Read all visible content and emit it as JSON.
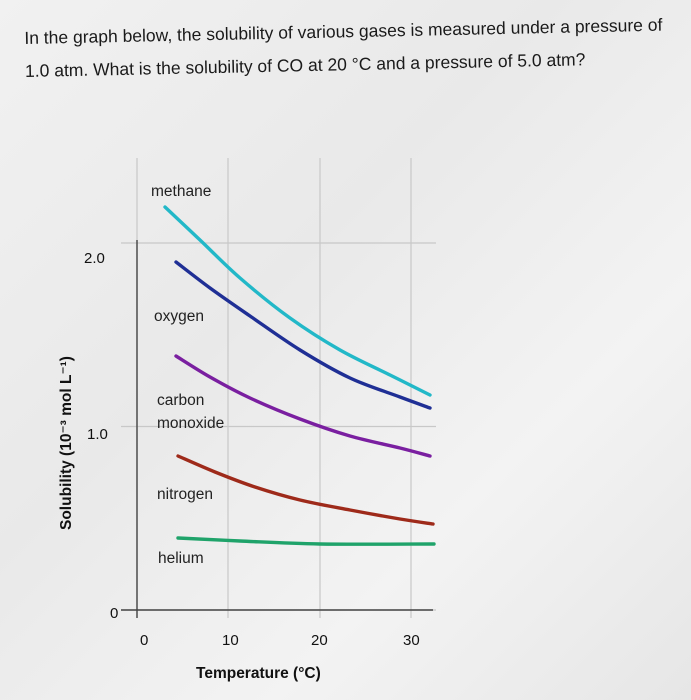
{
  "question": "In the graph below, the solubility of various gases is measured under a pressure of 1.0 atm. What is the solubility of CO at 20 °C and a pressure of 5.0 atm?",
  "chart_data": {
    "type": "line",
    "title": "",
    "xlabel": "Temperature (°C)",
    "ylabel": "Solubility (10⁻³ mol L⁻¹)",
    "xlim": [
      0,
      30
    ],
    "ylim": [
      0,
      2.0
    ],
    "x_ticks": [
      "0",
      "10",
      "20",
      "30"
    ],
    "y_ticks": [
      "0",
      "1.0",
      "2.0"
    ],
    "grid": true,
    "series": [
      {
        "name": "methane",
        "color": "#22b8c8",
        "x": [
          0,
          5,
          10,
          15,
          20,
          25,
          30
        ],
        "y": [
          2.4,
          2.06,
          1.78,
          1.56,
          1.41,
          1.29,
          1.2
        ]
      },
      {
        "name": "oxygen",
        "color": "#1f2f95",
        "x": [
          2,
          5,
          10,
          15,
          20,
          25,
          30
        ],
        "y": [
          2.19,
          1.97,
          1.7,
          1.49,
          1.35,
          1.24,
          1.16
        ]
      },
      {
        "name": "carbon monoxide",
        "color": "#7a1fa0",
        "x": [
          2,
          5,
          10,
          15,
          20,
          25,
          30
        ],
        "y": [
          1.6,
          1.44,
          1.27,
          1.14,
          1.04,
          0.97,
          0.92
        ]
      },
      {
        "name": "nitrogen",
        "color": "#9e2a1a",
        "x": [
          2,
          5,
          10,
          15,
          20,
          25,
          30
        ],
        "y": [
          0.96,
          0.88,
          0.79,
          0.72,
          0.67,
          0.64,
          0.62
        ]
      },
      {
        "name": "helium",
        "color": "#1fa36a",
        "x": [
          2,
          10,
          20,
          30
        ],
        "y": [
          0.37,
          0.36,
          0.35,
          0.36
        ]
      }
    ]
  }
}
